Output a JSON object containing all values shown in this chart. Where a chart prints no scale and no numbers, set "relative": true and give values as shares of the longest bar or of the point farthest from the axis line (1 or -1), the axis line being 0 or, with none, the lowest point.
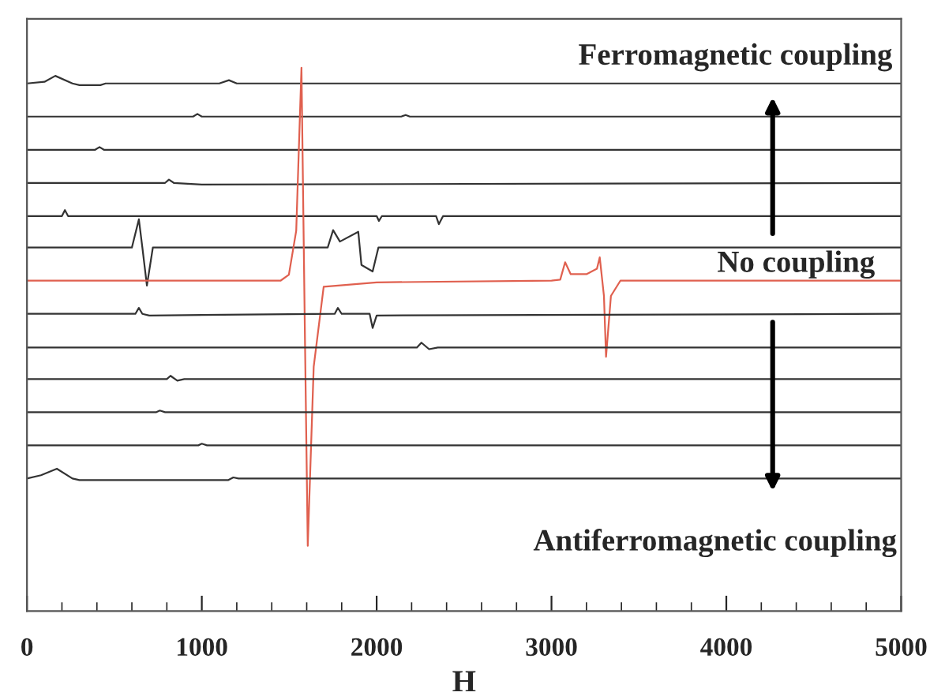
{
  "chart_data": {
    "type": "line",
    "relative": true,
    "xlabel": "H",
    "xlim": [
      0,
      5000
    ],
    "xticks": [
      0,
      1000,
      2000,
      3000,
      4000,
      5000
    ],
    "grid": false,
    "tick_labels": "x",
    "line_style": "solid",
    "annotations": [
      "Ferromagnetic coupling",
      "No coupling",
      "Antiferromagnetic coupling"
    ],
    "series": [
      {
        "color": "#333333",
        "x": [
          0,
          100,
          162,
          260,
          300,
          420,
          450,
          1100,
          1155,
          1200,
          5000
        ],
        "values": [
          0.971,
          0.974,
          0.985,
          0.971,
          0.968,
          0.968,
          0.971,
          0.971,
          0.977,
          0.971,
          0.971
        ]
      },
      {
        "color": "#333333",
        "x": [
          0,
          950,
          975,
          1000,
          2140,
          2166,
          2190,
          5000
        ],
        "values": [
          0.91,
          0.91,
          0.915,
          0.91,
          0.91,
          0.913,
          0.91,
          0.91
        ]
      },
      {
        "color": "#333333",
        "x": [
          0,
          390,
          415,
          440,
          5000
        ],
        "values": [
          0.849,
          0.849,
          0.854,
          0.849,
          0.849
        ]
      },
      {
        "color": "#333333",
        "x": [
          0,
          790,
          812,
          840,
          1000,
          5000
        ],
        "values": [
          0.788,
          0.788,
          0.794,
          0.788,
          0.785,
          0.788
        ]
      },
      {
        "color": "#333333",
        "x": [
          0,
          200,
          217,
          235,
          2000,
          2013,
          2030,
          2340,
          2356,
          2380,
          5000
        ],
        "values": [
          0.727,
          0.727,
          0.738,
          0.727,
          0.727,
          0.718,
          0.727,
          0.727,
          0.712,
          0.727,
          0.727
        ]
      },
      {
        "color": "#333333",
        "x": [
          0,
          600,
          640,
          660,
          686,
          720,
          1720,
          1751,
          1790,
          1895,
          1913,
          1977,
          2010,
          5000
        ],
        "values": [
          0.669,
          0.669,
          0.721,
          0.669,
          0.599,
          0.669,
          0.669,
          0.701,
          0.68,
          0.698,
          0.637,
          0.625,
          0.669,
          0.669
        ]
      },
      {
        "color": "#e0604f",
        "x": [
          0,
          1450,
          1498,
          1540,
          1570,
          1590,
          1606,
          1640,
          1697,
          2000,
          3000,
          3050,
          3078,
          3110,
          3200,
          3260,
          3276,
          3300,
          3312,
          3340,
          3394,
          5000
        ],
        "values": [
          0.608,
          0.608,
          0.619,
          0.7,
          1.0,
          0.5,
          0.12,
          0.45,
          0.597,
          0.605,
          0.608,
          0.61,
          0.642,
          0.62,
          0.62,
          0.63,
          0.651,
          0.58,
          0.468,
          0.58,
          0.608,
          0.608
        ]
      },
      {
        "color": "#333333",
        "x": [
          0,
          620,
          640,
          660,
          700,
          1760,
          1778,
          1800,
          1960,
          1977,
          2000,
          5000
        ],
        "values": [
          0.547,
          0.547,
          0.558,
          0.547,
          0.544,
          0.547,
          0.558,
          0.547,
          0.547,
          0.521,
          0.544,
          0.547
        ]
      },
      {
        "color": "#333333",
        "x": [
          0,
          2230,
          2256,
          2300,
          2350,
          5000
        ],
        "values": [
          0.485,
          0.485,
          0.494,
          0.482,
          0.485,
          0.485
        ]
      },
      {
        "color": "#333333",
        "x": [
          0,
          800,
          821,
          860,
          900,
          5000
        ],
        "values": [
          0.427,
          0.427,
          0.433,
          0.424,
          0.427,
          0.427
        ]
      },
      {
        "color": "#333333",
        "x": [
          0,
          740,
          760,
          790,
          5000
        ],
        "values": [
          0.366,
          0.366,
          0.369,
          0.366,
          0.366
        ]
      },
      {
        "color": "#333333",
        "x": [
          0,
          980,
          1000,
          1030,
          5000
        ],
        "values": [
          0.305,
          0.305,
          0.308,
          0.305,
          0.305
        ]
      },
      {
        "color": "#333333",
        "x": [
          0,
          80,
          171,
          260,
          300,
          1150,
          1180,
          1210,
          5000
        ],
        "values": [
          0.244,
          0.25,
          0.262,
          0.244,
          0.241,
          0.241,
          0.246,
          0.244,
          0.244
        ]
      }
    ]
  }
}
